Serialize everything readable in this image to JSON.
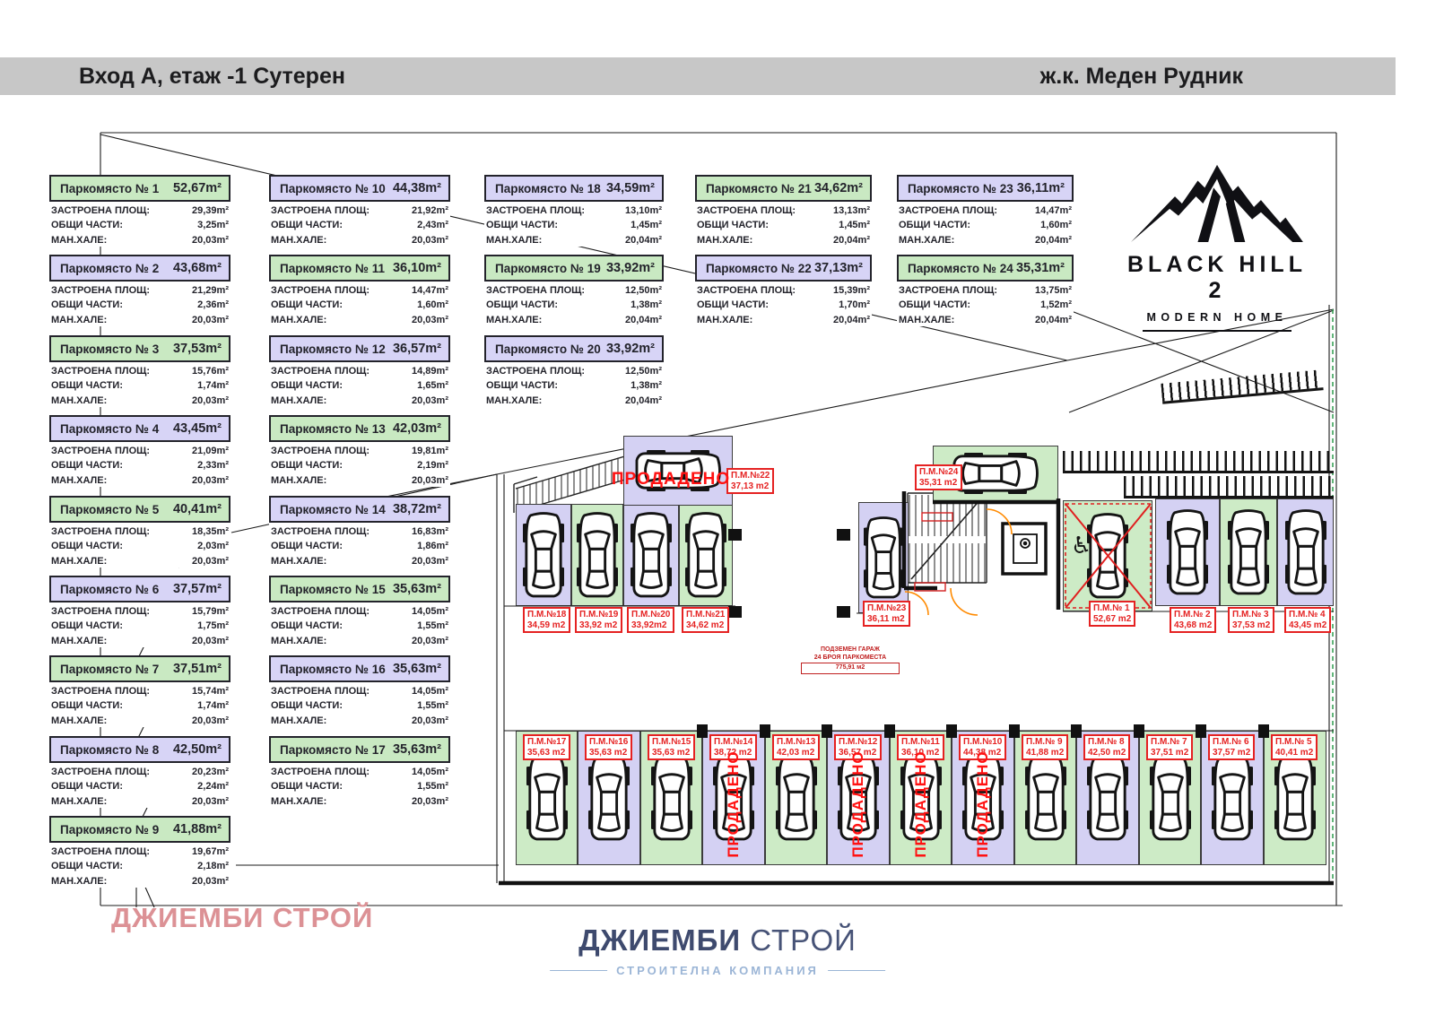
{
  "header": {
    "left": "Вход А, етаж -1 Сутерен",
    "right": "ж.к. Меден Рудник"
  },
  "logo": {
    "title": "BLACK HILL 2",
    "subtitle": "MODERN HOME"
  },
  "labels": {
    "built": "ЗАСТРОЕНА ПЛОЩ:",
    "common": "ОБЩИ ЧАСТИ:",
    "hall": "МАН.ХАЛЕ:"
  },
  "colors": {
    "pastel_green": "#c9e9c2",
    "pastel_lavender": "#d7d4f6",
    "sold_red": "#ff1111",
    "label_red": "#e52222",
    "bar_gray": "#c7c7c7",
    "brand_navy": "#3e4a6e",
    "brand_lightblue": "#9bb5d6",
    "watermark_pink": "#dc9195"
  },
  "cards": [
    {
      "col": 1,
      "title": "Паркомясто № 1",
      "area": "52,67m²",
      "built": "29,39m²",
      "common": "3,25m²",
      "hall": "20,03m²",
      "color": "green"
    },
    {
      "col": 1,
      "title": "Паркомясто № 2",
      "area": "43,68m²",
      "built": "21,29m²",
      "common": "2,36m²",
      "hall": "20,03m²",
      "color": "lav"
    },
    {
      "col": 1,
      "title": "Паркомясто № 3",
      "area": "37,53m²",
      "built": "15,76m²",
      "common": "1,74m²",
      "hall": "20,03m²",
      "color": "green"
    },
    {
      "col": 1,
      "title": "Паркомясто № 4",
      "area": "43,45m²",
      "built": "21,09m²",
      "common": "2,33m²",
      "hall": "20,03m²",
      "color": "lav"
    },
    {
      "col": 1,
      "title": "Паркомясто № 5",
      "area": "40,41m²",
      "built": "18,35m²",
      "common": "2,03m²",
      "hall": "20,03m²",
      "color": "green"
    },
    {
      "col": 1,
      "title": "Паркомясто № 6",
      "area": "37,57m²",
      "built": "15,79m²",
      "common": "1,75m²",
      "hall": "20,03m²",
      "color": "lav"
    },
    {
      "col": 1,
      "title": "Паркомясто № 7",
      "area": "37,51m²",
      "built": "15,74m²",
      "common": "1,74m²",
      "hall": "20,03m²",
      "color": "green"
    },
    {
      "col": 1,
      "title": "Паркомясто № 8",
      "area": "42,50m²",
      "built": "20,23m²",
      "common": "2,24m²",
      "hall": "20,03m²",
      "color": "lav"
    },
    {
      "col": 1,
      "title": "Паркомясто № 9",
      "area": "41,88m²",
      "built": "19,67m²",
      "common": "2,18m²",
      "hall": "20,03m²",
      "color": "green"
    },
    {
      "col": 2,
      "title": "Паркомясто № 10",
      "area": "44,38m²",
      "built": "21,92m²",
      "common": "2,43m²",
      "hall": "20,03m²",
      "color": "lav"
    },
    {
      "col": 2,
      "title": "Паркомясто № 11",
      "area": "36,10m²",
      "built": "14,47m²",
      "common": "1,60m²",
      "hall": "20,03m²",
      "color": "green"
    },
    {
      "col": 2,
      "title": "Паркомясто № 12",
      "area": "36,57m²",
      "built": "14,89m²",
      "common": "1,65m²",
      "hall": "20,03m²",
      "color": "lav"
    },
    {
      "col": 2,
      "title": "Паркомясто № 13",
      "area": "42,03m²",
      "built": "19,81m²",
      "common": "2,19m²",
      "hall": "20,03m²",
      "color": "green"
    },
    {
      "col": 2,
      "title": "Паркомясто № 14",
      "area": "38,72m²",
      "built": "16,83m²",
      "common": "1,86m²",
      "hall": "20,03m²",
      "color": "lav"
    },
    {
      "col": 2,
      "title": "Паркомясто № 15",
      "area": "35,63m²",
      "built": "14,05m²",
      "common": "1,55m²",
      "hall": "20,03m²",
      "color": "green"
    },
    {
      "col": 2,
      "title": "Паркомясто № 16",
      "area": "35,63m²",
      "built": "14,05m²",
      "common": "1,55m²",
      "hall": "20,03m²",
      "color": "lav"
    },
    {
      "col": 2,
      "title": "Паркомясто № 17",
      "area": "35,63m²",
      "built": "14,05m²",
      "common": "1,55m²",
      "hall": "20,03m²",
      "color": "green"
    },
    {
      "col": 3,
      "title": "Паркомясто № 18",
      "area": "34,59m²",
      "built": "13,10m²",
      "common": "1,45m²",
      "hall": "20,04m²",
      "color": "lav"
    },
    {
      "col": 3,
      "title": "Паркомясто № 19",
      "area": "33,92m²",
      "built": "12,50m²",
      "common": "1,38m²",
      "hall": "20,04m²",
      "color": "green"
    },
    {
      "col": 3,
      "title": "Паркомясто № 20",
      "area": "33,92m²",
      "built": "12,50m²",
      "common": "1,38m²",
      "hall": "20,04m²",
      "color": "lav"
    },
    {
      "col": 4,
      "title": "Паркомясто № 21",
      "area": "34,62m²",
      "built": "13,13m²",
      "common": "1,45m²",
      "hall": "20,04m²",
      "color": "green"
    },
    {
      "col": 4,
      "title": "Паркомясто № 22",
      "area": "37,13m²",
      "built": "15,39m²",
      "common": "1,70m²",
      "hall": "20,04m²",
      "color": "lav"
    },
    {
      "col": 5,
      "title": "Паркомясто № 23",
      "area": "36,11m²",
      "built": "14,47m²",
      "common": "1,60m²",
      "hall": "20,04m²",
      "color": "lav"
    },
    {
      "col": 5,
      "title": "Паркомясто № 24",
      "area": "35,31m²",
      "built": "13,75m²",
      "common": "1,52m²",
      "hall": "20,04m²",
      "color": "green"
    }
  ],
  "plan": {
    "sold_text": "ПРОДАДЕНО",
    "note1": "ПОДЗЕМЕН ГАРАЖ",
    "note2": "24 БРОЯ ПАРКОМЕСТА",
    "note3": "775,91 м2",
    "stalls": [
      {
        "num": "18",
        "label": "П.М.№18",
        "area": "34,59 m2",
        "color": "lav",
        "row": "top"
      },
      {
        "num": "19",
        "label": "П.М.№19",
        "area": "33,92 m2",
        "color": "green",
        "row": "top"
      },
      {
        "num": "20",
        "label": "П.М.№20",
        "area": "33,92m2",
        "color": "lav",
        "row": "top"
      },
      {
        "num": "21",
        "label": "П.М.№21",
        "area": "34,62 m2",
        "color": "green",
        "row": "top"
      },
      {
        "num": "22",
        "label": "П.М.№22",
        "area": "37,13 m2",
        "color": "lav",
        "row": "top",
        "sold": true,
        "horizontal": true
      },
      {
        "num": "23",
        "label": "П.М.№23",
        "area": "36,11 m2",
        "color": "lav",
        "row": "top"
      },
      {
        "num": "24",
        "label": "П.М.№24",
        "area": "35,31 m2",
        "color": "green",
        "row": "top",
        "horizontal": true
      },
      {
        "num": "1",
        "label": "П.М.№ 1",
        "area": "52,67 m2",
        "color": "green",
        "row": "top",
        "crossed": true
      },
      {
        "num": "2",
        "label": "П.М.№ 2",
        "area": "43,68 m2",
        "color": "lav",
        "row": "top"
      },
      {
        "num": "3",
        "label": "П.М.№ 3",
        "area": "37,53 m2",
        "color": "green",
        "row": "top"
      },
      {
        "num": "4",
        "label": "П.М.№ 4",
        "area": "43,45 m2",
        "color": "lav",
        "row": "top"
      },
      {
        "num": "17",
        "label": "П.М.№17",
        "area": "35,63 m2",
        "color": "green",
        "row": "bottom"
      },
      {
        "num": "16",
        "label": "П.М.№16",
        "area": "35,63 m2",
        "color": "lav",
        "row": "bottom"
      },
      {
        "num": "15",
        "label": "П.М.№15",
        "area": "35,63 m2",
        "color": "green",
        "row": "bottom"
      },
      {
        "num": "14",
        "label": "П.М.№14",
        "area": "38,72 m2",
        "color": "lav",
        "row": "bottom",
        "sold": true
      },
      {
        "num": "13",
        "label": "П.М.№13",
        "area": "42,03 m2",
        "color": "green",
        "row": "bottom"
      },
      {
        "num": "12",
        "label": "П.М.№12",
        "area": "36,57 m2",
        "color": "lav",
        "row": "bottom",
        "sold": true
      },
      {
        "num": "11",
        "label": "П.М.№11",
        "area": "36,10 m2",
        "color": "green",
        "row": "bottom",
        "sold": true
      },
      {
        "num": "10",
        "label": "П.М.№10",
        "area": "44,38 m2",
        "color": "lav",
        "row": "bottom",
        "sold": true
      },
      {
        "num": "9",
        "label": "П.М.№ 9",
        "area": "41,88 m2",
        "color": "green",
        "row": "bottom"
      },
      {
        "num": "8",
        "label": "П.М.№ 8",
        "area": "42,50 m2",
        "color": "lav",
        "row": "bottom"
      },
      {
        "num": "7",
        "label": "П.М.№ 7",
        "area": "37,51 m2",
        "color": "green",
        "row": "bottom"
      },
      {
        "num": "6",
        "label": "П.М.№ 6",
        "area": "37,57 m2",
        "color": "lav",
        "row": "bottom"
      },
      {
        "num": "5",
        "label": "П.М.№ 5",
        "area": "40,41 m2",
        "color": "green",
        "row": "bottom"
      }
    ]
  },
  "watermark": "ДЖИЕМБИ СТРОЙ",
  "footer": {
    "bold": "ДЖИЕМБИ",
    "light": "СТРОЙ",
    "subtitle": "СТРОИТЕЛНА КОМПАНИЯ"
  }
}
